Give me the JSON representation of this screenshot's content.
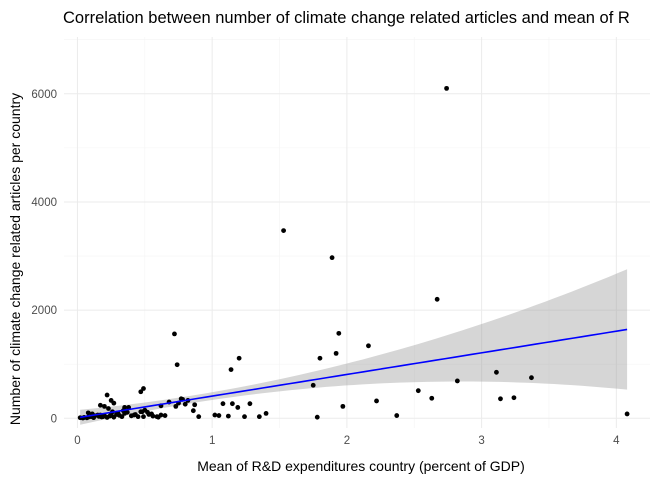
{
  "chart_data": {
    "type": "scatter",
    "title": "Correlation between number of climate change related articles and mean of R",
    "xlabel": "Mean of  R&D expenditures country (percent of GDP)",
    "ylabel": "Number of climate change related articles per country",
    "xlim": [
      -0.1,
      4.25
    ],
    "ylim": [
      -180,
      7050
    ],
    "x_ticks": [
      0,
      1,
      2,
      3,
      4
    ],
    "y_ticks": [
      0,
      2000,
      4000,
      6000
    ],
    "x_tick_labels": [
      "0",
      "1",
      "2",
      "3",
      "4"
    ],
    "y_tick_labels": [
      "0",
      "2000",
      "4000",
      "6000"
    ],
    "grid": true,
    "points": {
      "color": "#000000",
      "x": [
        0.02,
        0.04,
        0.05,
        0.07,
        0.08,
        0.1,
        0.12,
        0.13,
        0.15,
        0.16,
        0.18,
        0.2,
        0.22,
        0.24,
        0.25,
        0.27,
        0.29,
        0.31,
        0.33,
        0.35,
        0.37,
        0.4,
        0.42,
        0.45,
        0.48,
        0.5,
        0.53,
        0.56,
        0.59,
        0.62,
        0.65,
        0.08,
        0.11,
        0.17,
        0.19,
        0.23,
        0.26,
        0.3,
        0.34,
        0.38,
        0.43,
        0.47,
        0.49,
        0.52,
        0.55,
        0.6,
        0.68,
        0.73,
        0.75,
        0.78,
        0.8,
        0.82,
        0.86,
        0.9,
        1.02,
        1.05,
        1.08,
        1.12,
        1.15,
        1.19,
        1.24,
        1.28,
        1.35,
        1.4,
        0.72,
        0.74,
        1.14,
        1.2,
        1.53,
        1.75,
        1.78,
        1.8,
        1.89,
        1.92,
        1.94,
        1.97,
        2.16,
        2.22,
        2.37,
        2.53,
        2.63,
        2.67,
        2.74,
        2.82,
        3.11,
        3.14,
        3.24,
        3.37,
        4.08,
        0.2,
        0.17,
        0.22,
        0.25,
        0.27,
        0.35,
        0.47,
        0.49,
        0.62,
        0.77,
        0.87
      ],
      "y": [
        10,
        5,
        15,
        8,
        20,
        30,
        12,
        45,
        60,
        35,
        25,
        50,
        15,
        40,
        80,
        20,
        70,
        55,
        30,
        90,
        110,
        45,
        60,
        30,
        120,
        150,
        70,
        40,
        30,
        60,
        50,
        100,
        80,
        60,
        30,
        180,
        120,
        100,
        140,
        200,
        70,
        120,
        30,
        110,
        80,
        20,
        300,
        220,
        280,
        350,
        260,
        330,
        140,
        30,
        60,
        50,
        270,
        40,
        270,
        200,
        30,
        270,
        30,
        90,
        1560,
        990,
        900,
        1110,
        3470,
        610,
        20,
        1110,
        2970,
        1200,
        1570,
        220,
        1340,
        320,
        50,
        510,
        370,
        2200,
        6100,
        690,
        850,
        360,
        380,
        750,
        80,
        220,
        240,
        430,
        330,
        280,
        200,
        490,
        550,
        230,
        360,
        250
      ]
    },
    "trend": {
      "method": "lm",
      "color": "#0000ff",
      "ribbon_color": "#999999",
      "x_range": [
        0.02,
        4.08
      ],
      "intercept": 10,
      "slope": 400,
      "ci_base": 70,
      "ci_scale": 100
    }
  }
}
